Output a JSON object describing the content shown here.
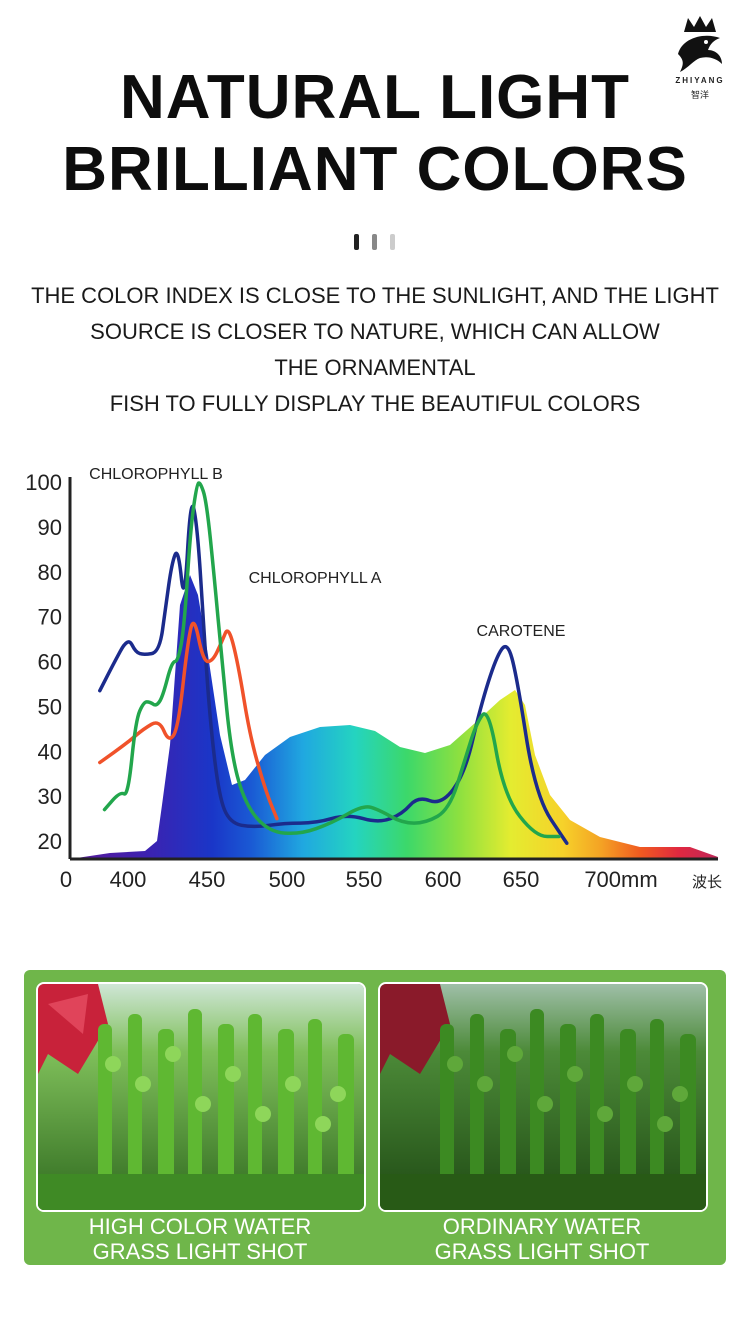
{
  "brand": {
    "name": "ZHIYANG",
    "name_cn": "智洋"
  },
  "headline": {
    "line1": "NATURAL LIGHT",
    "line2": "BRILLIANT COLORS"
  },
  "description": [
    "THE COLOR INDEX IS CLOSE TO THE SUNLIGHT, AND THE LIGHT",
    "SOURCE IS CLOSER TO NATURE, WHICH CAN ALLOW",
    "THE ORNAMENTAL",
    "FISH TO FULLY DISPLAY THE BEAUTIFUL COLORS"
  ],
  "colors": {
    "accent_green": "#6fb64a",
    "chlorophyll_b": "#1b2b8c",
    "chlorophyll_a": "#f0522a",
    "carotene": "#22a64c"
  },
  "chart_data": {
    "type": "line",
    "title": "",
    "xlabel": "",
    "x_ticks": [
      "0",
      "400",
      "450",
      "500",
      "550",
      "600",
      "650",
      "700mm",
      "波长"
    ],
    "y_ticks": [
      20,
      30,
      40,
      50,
      60,
      70,
      80,
      90,
      100
    ],
    "xlim": [
      360,
      770
    ],
    "ylim": [
      20,
      100
    ],
    "annotations": [
      "CHLOROPHYLL B",
      "CHLOROPHYLL A",
      "CAROTENE"
    ],
    "series": [
      {
        "name": "CHLOROPHYLL B",
        "x": [
          382,
          390,
          400,
          405,
          410,
          420,
          424,
          428,
          432,
          436,
          440,
          444,
          448,
          452,
          458,
          465,
          480,
          500,
          520,
          540,
          560,
          575,
          585,
          600,
          615,
          625,
          635,
          642,
          648,
          660,
          680
        ],
        "y": [
          53.5,
          59,
          65.5,
          62,
          61.5,
          62,
          72,
          82,
          85.5,
          72,
          97,
          91,
          70,
          48,
          30,
          24,
          23,
          24,
          24,
          26,
          24,
          26,
          30,
          28,
          35,
          50,
          61,
          64.5,
          57,
          30,
          19.5
        ]
      },
      {
        "name": "CHLOROPHYLL A",
        "x": [
          382,
          400,
          410,
          420,
          426,
          432,
          438,
          442,
          448,
          454,
          460,
          464,
          470,
          478,
          488,
          495
        ],
        "y": [
          37.5,
          42,
          45,
          47,
          42,
          45,
          64,
          70.5,
          60,
          60,
          64.5,
          68,
          60,
          43,
          31,
          25
        ]
      },
      {
        "name": "CAROTENE",
        "x": [
          385,
          395,
          400,
          405,
          410,
          414,
          418,
          422,
          428,
          432,
          436,
          440,
          444,
          446,
          450,
          455,
          460,
          466,
          475,
          490,
          510,
          530,
          550,
          560,
          575,
          590,
          605,
          615,
          622,
          630,
          640,
          660,
          675
        ],
        "y": [
          27,
          31,
          30,
          47,
          51,
          51,
          50,
          52,
          60,
          60,
          68,
          90,
          99.5,
          100,
          96,
          79,
          60,
          39,
          28,
          22,
          21.5,
          24,
          28,
          27,
          24,
          24,
          27,
          38,
          46,
          50,
          30,
          21,
          21
        ]
      }
    ]
  },
  "photos": [
    {
      "caption_line1": "HIGH COLOR WATER",
      "caption_line2": "GRASS LIGHT SHOT"
    },
    {
      "caption_line1": "ORDINARY WATER",
      "caption_line2": "GRASS LIGHT SHOT"
    }
  ]
}
